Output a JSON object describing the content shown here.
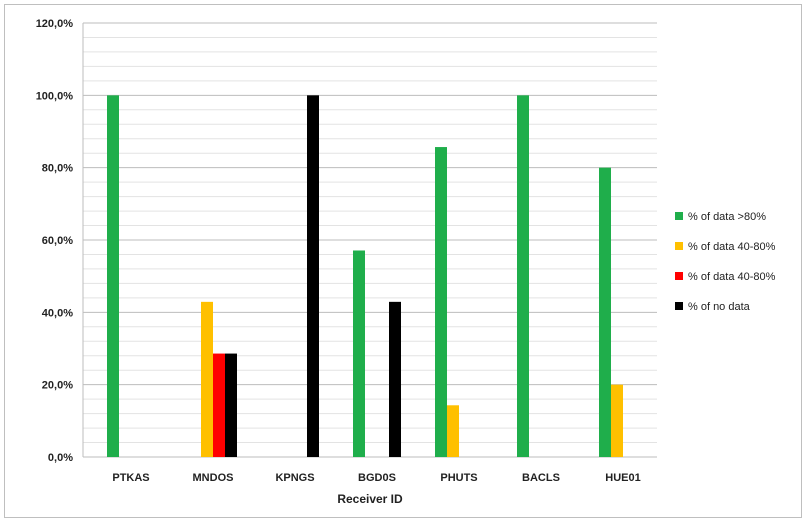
{
  "chart_data": {
    "type": "bar",
    "xlabel": "Receiver ID",
    "ylabel": "",
    "ylim": [
      0,
      120
    ],
    "y_ticks": [
      "0,0%",
      "20,0%",
      "40,0%",
      "60,0%",
      "80,0%",
      "100,0%",
      "120,0%"
    ],
    "y_tick_values": [
      0,
      20,
      40,
      60,
      80,
      100,
      120
    ],
    "categories": [
      "PTKAS",
      "MNDOS",
      "KPNGS",
      "BGD0S",
      "PHUTS",
      "BACLS",
      "HUE01"
    ],
    "series": [
      {
        "name": "% of data >80%",
        "color": "#1fae4b",
        "values": [
          100,
          0,
          0,
          57.1,
          85.7,
          100,
          80
        ]
      },
      {
        "name": "% of data 40-80%",
        "color": "#ffc000",
        "values": [
          0,
          42.9,
          0,
          0,
          14.3,
          0,
          20
        ]
      },
      {
        "name": "% of data 40-80%",
        "color": "#ff0000",
        "values": [
          0,
          28.6,
          0,
          0,
          0,
          0,
          0
        ]
      },
      {
        "name": "% of no data",
        "color": "#000000",
        "values": [
          0,
          28.6,
          100,
          42.9,
          0,
          0,
          0
        ]
      }
    ],
    "grid": true,
    "legend_position": "right"
  }
}
